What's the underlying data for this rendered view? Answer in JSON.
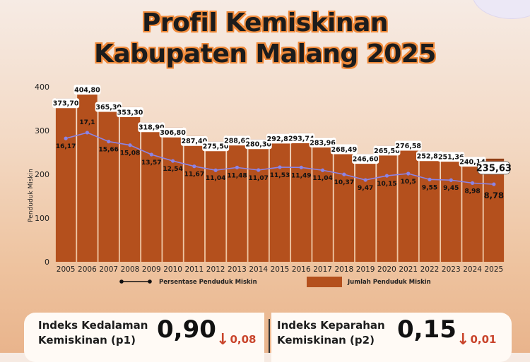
{
  "title_line1": "Profil Kemiskinan",
  "title_line2": "Kabupaten Malang 2025",
  "colors": {
    "bar": "#b4501d",
    "bar_top": "#8f3e15",
    "line": "#8b84e6",
    "label_box": "#ffffff",
    "accent_orange": "#f08a3a",
    "down_arrow": "#c9442b"
  },
  "chart_data": {
    "type": "bar",
    "categories": [
      "2005",
      "2006",
      "2007",
      "2008",
      "2009",
      "2010",
      "2011",
      "2012",
      "2013",
      "2014",
      "2015",
      "2016",
      "2017",
      "2018",
      "2019",
      "2020",
      "2021",
      "2022",
      "2023",
      "2024",
      "2025"
    ],
    "ylabel": "Penduduk Miskin",
    "ylim": [
      0,
      400
    ],
    "yticks": [
      0,
      100,
      200,
      300,
      400
    ],
    "grid": false,
    "legend_position": "bottom",
    "series": [
      {
        "name": "Jumlah Penduduk Miskin",
        "type": "bar",
        "values": [
          373.7,
          404.8,
          365.3,
          353.3,
          318.9,
          306.8,
          287.4,
          275.5,
          288.6,
          280.3,
          292.87,
          293.74,
          283.96,
          268.49,
          246.6,
          265.56,
          276.58,
          252.88,
          251.36,
          240.14,
          235.63
        ],
        "labels": [
          "373,70",
          "404,80",
          "365,30",
          "353,30",
          "318,90",
          "306,80",
          "287,40",
          "275,50",
          "288,60",
          "280,30",
          "292,87",
          "293,74",
          "283,96",
          "268,49",
          "246,60",
          "265,56",
          "276,58",
          "252,88",
          "251,36",
          "240,14",
          "235,63"
        ]
      },
      {
        "name": "Persentase Penduduk Miskin",
        "type": "line",
        "values": [
          16.17,
          17.1,
          15.66,
          15.08,
          13.57,
          12.54,
          11.67,
          11.04,
          11.48,
          11.07,
          11.53,
          11.49,
          11.04,
          10.37,
          9.47,
          10.15,
          10.5,
          9.55,
          9.45,
          8.98,
          8.78
        ],
        "labels": [
          "16,17",
          "17,1",
          "15,66",
          "15,08",
          "13,57",
          "12,54",
          "11,67",
          "11,04",
          "11,48",
          "11,07",
          "11,53",
          "11,49",
          "11,04",
          "10,37",
          "9,47",
          "10,15",
          "10,5",
          "9,55",
          "9,45",
          "8,98",
          "8,78"
        ]
      }
    ]
  },
  "kpi": [
    {
      "label_line1": "Indeks Kedalaman",
      "label_line2": "Kemiskinan (p1)",
      "value": "0,90",
      "delta": "0,08",
      "delta_direction": "down"
    },
    {
      "label_line1": "Indeks Keparahan",
      "label_line2": "Kemiskinan (p2)",
      "value": "0,15",
      "delta": "0,01",
      "delta_direction": "down"
    }
  ]
}
